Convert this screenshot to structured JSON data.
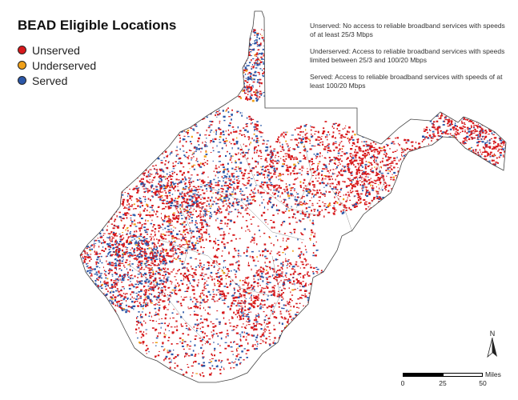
{
  "map": {
    "title": "BEAD Eligible Locations",
    "legend": [
      {
        "label": "Unserved",
        "color": "#d7191c"
      },
      {
        "label": "Underserved",
        "color": "#f0a11a"
      },
      {
        "label": "Served",
        "color": "#2b57a8"
      }
    ],
    "definitions": [
      "Unserved: No access to reliable broadband services with speeds of at least 25/3 Mbps",
      "Underserved: Access to reliable broadband services with speeds limited between 25/3 and 100/20 Mbps",
      "Served: Access to reliable broadband services with speeds of at least 100/20 Mbps"
    ],
    "north_label": "N",
    "scale": {
      "ticks": [
        "0",
        "25",
        "50"
      ],
      "unit": "Miles"
    },
    "colors": {
      "unserved": "#d7191c",
      "underserved": "#f0a11a",
      "served": "#2b57a8",
      "boundary": "#555555"
    }
  }
}
